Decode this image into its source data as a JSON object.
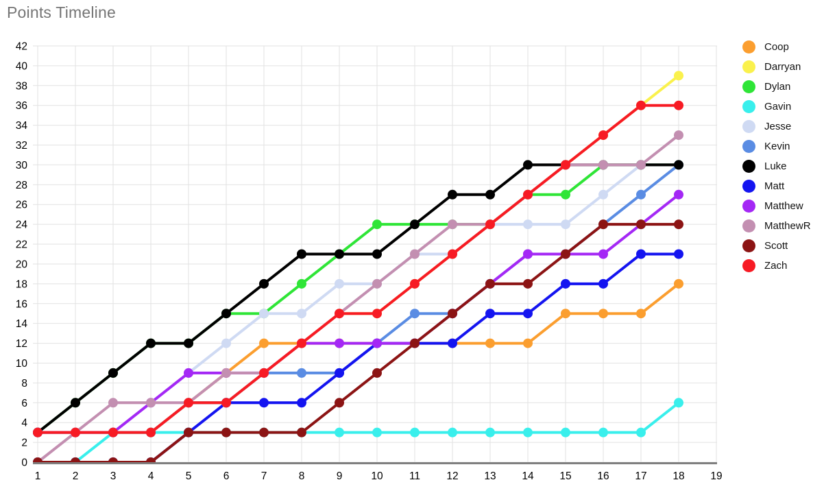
{
  "title": "Points Timeline",
  "styles": {
    "background": "#FFFFFF",
    "title_color": "#757575",
    "grid_color": "#E2E2E2",
    "axis_color": "#7F7F7F",
    "tick_label_color": "#000000",
    "legend_text_color": "#111111"
  },
  "chart_data": {
    "type": "line",
    "title": "Points Timeline",
    "xlabel": "",
    "ylabel": "",
    "x": [
      1,
      2,
      3,
      4,
      5,
      6,
      7,
      8,
      9,
      10,
      11,
      12,
      13,
      14,
      15,
      16,
      17,
      18
    ],
    "x_axis_ticks": [
      1,
      2,
      3,
      4,
      5,
      6,
      7,
      8,
      9,
      10,
      11,
      12,
      13,
      14,
      15,
      16,
      17,
      18,
      19
    ],
    "xlim": [
      1,
      19
    ],
    "ylim": [
      0,
      42
    ],
    "y_tick_step": 2,
    "grid": true,
    "legend_position": "right",
    "marker": "circle",
    "series": [
      {
        "name": "Coop",
        "color": "#FB9E2F",
        "values": [
          3,
          3,
          3,
          3,
          6,
          9,
          12,
          12,
          12,
          12,
          12,
          12,
          12,
          12,
          15,
          15,
          15,
          18
        ]
      },
      {
        "name": "Darryan",
        "color": "#FAF14D",
        "values": [
          3,
          3,
          3,
          3,
          6,
          6,
          9,
          12,
          15,
          15,
          18,
          21,
          24,
          27,
          30,
          33,
          36,
          39
        ]
      },
      {
        "name": "Dylan",
        "color": "#2FE537",
        "values": [
          3,
          6,
          9,
          12,
          12,
          15,
          15,
          18,
          21,
          24,
          24,
          24,
          24,
          27,
          27,
          30,
          30,
          30
        ]
      },
      {
        "name": "Gavin",
        "color": "#39EFEC",
        "values": [
          0,
          0,
          3,
          3,
          3,
          3,
          3,
          3,
          3,
          3,
          3,
          3,
          3,
          3,
          3,
          3,
          3,
          6
        ]
      },
      {
        "name": "Jesse",
        "color": "#CFDAF3",
        "values": [
          3,
          3,
          3,
          6,
          9,
          12,
          15,
          15,
          18,
          18,
          21,
          21,
          24,
          24,
          24,
          27,
          30,
          30
        ]
      },
      {
        "name": "Kevin",
        "color": "#5A8CE3",
        "values": [
          3,
          3,
          3,
          3,
          6,
          6,
          9,
          9,
          9,
          12,
          15,
          15,
          18,
          21,
          21,
          24,
          27,
          30
        ]
      },
      {
        "name": "Luke",
        "color": "#000000",
        "values": [
          3,
          6,
          9,
          12,
          12,
          15,
          18,
          21,
          21,
          21,
          24,
          27,
          27,
          30,
          30,
          30,
          30,
          30
        ]
      },
      {
        "name": "Matt",
        "color": "#1414F0",
        "values": [
          0,
          0,
          0,
          0,
          3,
          6,
          6,
          6,
          9,
          12,
          12,
          12,
          15,
          15,
          18,
          18,
          21,
          21
        ]
      },
      {
        "name": "Matthew",
        "color": "#A428F5",
        "values": [
          3,
          3,
          3,
          6,
          9,
          9,
          9,
          12,
          12,
          12,
          12,
          15,
          18,
          21,
          21,
          21,
          24,
          27
        ]
      },
      {
        "name": "MatthewR",
        "color": "#C38FB1",
        "values": [
          0,
          3,
          6,
          6,
          6,
          9,
          9,
          12,
          15,
          18,
          21,
          24,
          24,
          27,
          30,
          30,
          30,
          33
        ]
      },
      {
        "name": "Scott",
        "color": "#8C1414",
        "values": [
          0,
          0,
          0,
          0,
          3,
          3,
          3,
          3,
          6,
          9,
          12,
          15,
          18,
          18,
          21,
          24,
          24,
          24
        ]
      },
      {
        "name": "Zach",
        "color": "#F71B24",
        "values": [
          3,
          3,
          3,
          3,
          6,
          6,
          9,
          12,
          15,
          15,
          18,
          21,
          24,
          27,
          30,
          33,
          36,
          36
        ]
      }
    ]
  }
}
